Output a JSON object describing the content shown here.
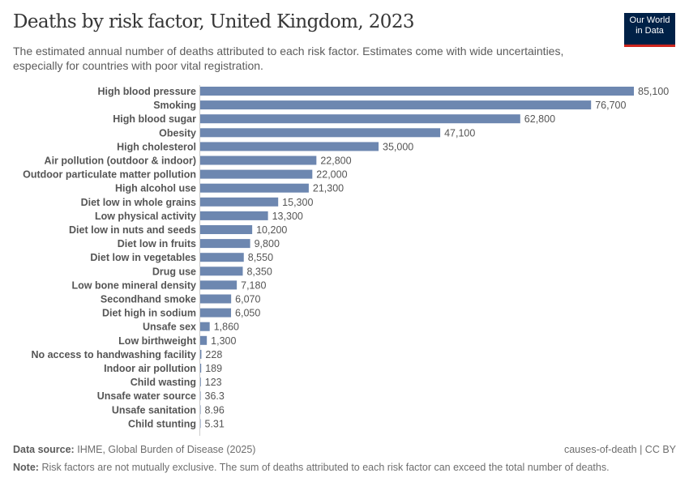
{
  "title": "Deaths by risk factor, United Kingdom, 2023",
  "subtitle": "The estimated annual number of deaths attributed to each risk factor. Estimates come with wide uncertainties, especially for countries with poor vital registration.",
  "logo": {
    "line1": "Our World",
    "line2": "in Data"
  },
  "footer": {
    "source_label": "Data source:",
    "source": "IHME, Global Burden of Disease (2025)",
    "license": "causes-of-death | CC BY",
    "note_label": "Note:",
    "note": "Risk factors are not mutually exclusive. The sum of deaths attributed to each risk factor can exceed the total number of deaths."
  },
  "chart_data": {
    "type": "bar",
    "orientation": "horizontal",
    "bar_color": "#6d87b0",
    "categories": [
      "High blood pressure",
      "Smoking",
      "High blood sugar",
      "Obesity",
      "High cholesterol",
      "Air pollution (outdoor & indoor)",
      "Outdoor particulate matter pollution",
      "High alcohol use",
      "Diet low in whole grains",
      "Low physical activity",
      "Diet low in nuts and seeds",
      "Diet low in fruits",
      "Diet low in vegetables",
      "Drug use",
      "Low bone mineral density",
      "Secondhand smoke",
      "Diet high in sodium",
      "Unsafe sex",
      "Low birthweight",
      "No access to handwashing facility",
      "Indoor air pollution",
      "Child wasting",
      "Unsafe water source",
      "Unsafe sanitation",
      "Child stunting"
    ],
    "values": [
      85100,
      76700,
      62800,
      47100,
      35000,
      22800,
      22000,
      21300,
      15300,
      13300,
      10200,
      9800,
      8550,
      8350,
      7180,
      6070,
      6050,
      1860,
      1300,
      228,
      189,
      123,
      36.3,
      8.96,
      5.31
    ],
    "labels": [
      "85,100",
      "76,700",
      "62,800",
      "47,100",
      "35,000",
      "22,800",
      "22,000",
      "21,300",
      "15,300",
      "13,300",
      "10,200",
      "9,800",
      "8,550",
      "8,350",
      "7,180",
      "6,070",
      "6,050",
      "1,860",
      "1,300",
      "228",
      "189",
      "123",
      "36.3",
      "8.96",
      "5.31"
    ]
  }
}
